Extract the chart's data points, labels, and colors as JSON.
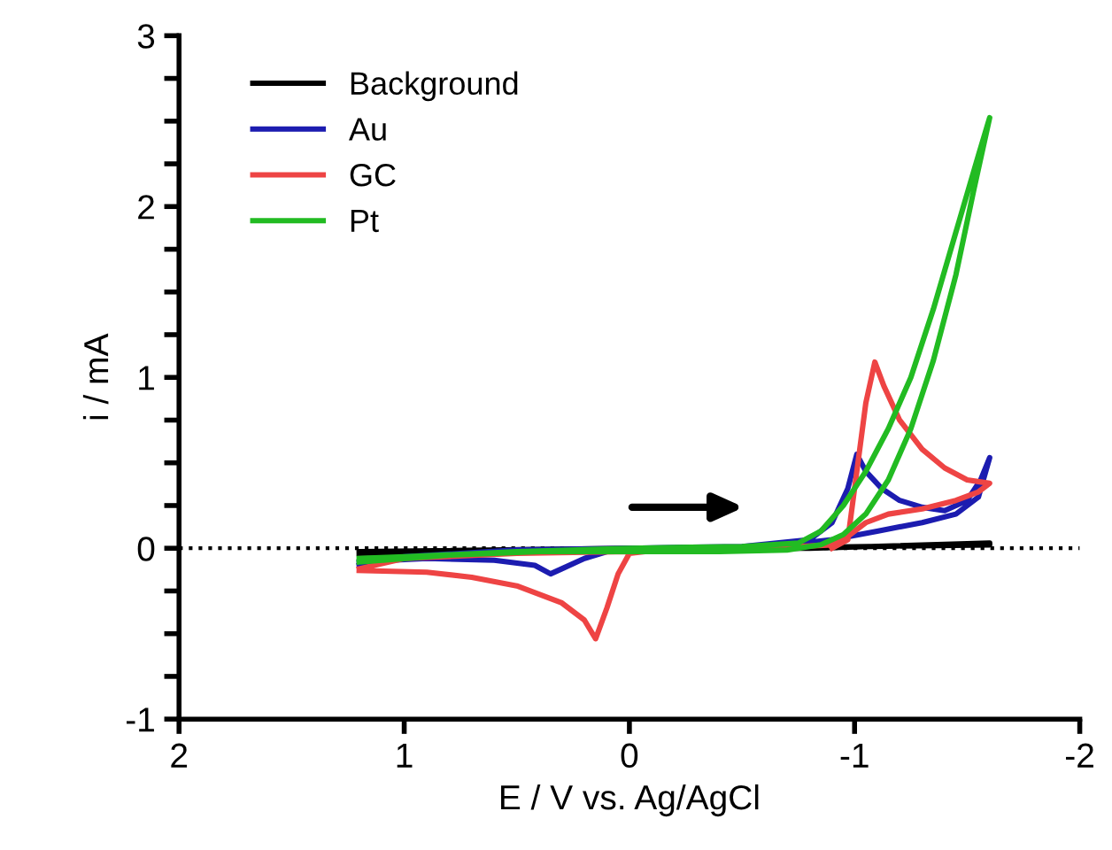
{
  "chart_data": {
    "type": "line",
    "xlabel": "E / V vs. Ag/AgCl",
    "ylabel": "i / mA",
    "xlim": [
      2,
      -2
    ],
    "xticks": [
      2,
      1,
      0,
      -1,
      -2
    ],
    "ylim": [
      -1,
      3
    ],
    "yticks": [
      -1,
      {
        "value": -0.75,
        "label": null
      },
      {
        "value": -0.5,
        "label": null
      },
      {
        "value": -0.25,
        "label": null
      },
      0,
      {
        "value": 0.25,
        "label": null
      },
      {
        "value": 0.5,
        "label": null
      },
      {
        "value": 0.75,
        "label": null
      },
      1,
      {
        "value": 1.25,
        "label": null
      },
      {
        "value": 1.5,
        "label": null
      },
      {
        "value": 1.75,
        "label": null
      },
      2,
      {
        "value": 2.25,
        "label": null
      },
      {
        "value": 2.5,
        "label": null
      },
      {
        "value": 2.75,
        "label": null
      },
      3
    ],
    "grid": false,
    "legend": "top left",
    "marker": "none",
    "line_style": "solid",
    "ref_lines": [
      {
        "axis": "y",
        "value": 0,
        "color": "#000000",
        "line_style": "dotted"
      }
    ],
    "series": [
      {
        "name": "Background",
        "color": "#000000",
        "x": [
          1.2,
          0,
          -0.8,
          -1.6,
          -1.6,
          0,
          1.2
        ],
        "values": [
          -0.02,
          0.0,
          0.0,
          0.03,
          0.02,
          -0.01,
          -0.03
        ]
      },
      {
        "name": "Au",
        "color": "#1c1cb0",
        "x": [
          1.2,
          1.0,
          0.5,
          0,
          -0.5,
          -0.8,
          -0.9,
          -0.97,
          -1.01,
          -1.05,
          -1.12,
          -1.2,
          -1.3,
          -1.4,
          -1.5,
          -1.56,
          -1.6,
          -1.55,
          -1.45,
          -1.3,
          -1.1,
          -0.9,
          -0.7,
          -0.3,
          0.1,
          0.2,
          0.3,
          0.35,
          0.42,
          0.6,
          0.9,
          1.2
        ],
        "values": [
          -0.1,
          -0.05,
          -0.01,
          0.0,
          0.01,
          0.05,
          0.15,
          0.35,
          0.55,
          0.45,
          0.35,
          0.28,
          0.24,
          0.22,
          0.28,
          0.4,
          0.53,
          0.3,
          0.2,
          0.15,
          0.1,
          0.05,
          0.02,
          0.0,
          -0.02,
          -0.06,
          -0.12,
          -0.15,
          -0.1,
          -0.07,
          -0.06,
          -0.08
        ]
      },
      {
        "name": "GC",
        "color": "#ee4444",
        "x": [
          1.2,
          1.0,
          0.5,
          0,
          -0.5,
          -0.9,
          -0.97,
          -1.01,
          -1.05,
          -1.09,
          -1.13,
          -1.2,
          -1.3,
          -1.4,
          -1.5,
          -1.6,
          -1.55,
          -1.45,
          -1.3,
          -1.15,
          -1.05,
          -0.97,
          -0.9,
          -0.6,
          -0.2,
          0.0,
          0.05,
          0.1,
          0.15,
          0.2,
          0.3,
          0.5,
          0.7,
          0.9,
          1.2
        ],
        "values": [
          -0.12,
          -0.06,
          -0.03,
          -0.02,
          null,
          0.0,
          0.05,
          0.45,
          0.85,
          1.09,
          0.95,
          0.75,
          0.58,
          0.47,
          0.4,
          0.38,
          0.33,
          0.28,
          0.23,
          0.2,
          0.15,
          0.07,
          0.02,
          0.0,
          0.0,
          -0.03,
          -0.15,
          -0.35,
          -0.53,
          -0.42,
          -0.32,
          -0.22,
          -0.17,
          -0.14,
          -0.13
        ]
      },
      {
        "name": "Pt",
        "color": "#22bb22",
        "x": [
          1.2,
          0.8,
          0.4,
          0,
          -0.4,
          -0.7,
          -0.85,
          -0.95,
          -1.05,
          -1.15,
          -1.25,
          -1.35,
          -1.45,
          -1.53,
          -1.6,
          -1.55,
          -1.45,
          -1.35,
          -1.25,
          -1.15,
          -1.05,
          -0.95,
          -0.85,
          -0.75,
          -0.5,
          0,
          0.5,
          1.0,
          1.2
        ],
        "values": [
          -0.08,
          -0.04,
          -0.02,
          -0.02,
          -0.02,
          -0.01,
          0.02,
          0.08,
          0.2,
          0.4,
          0.7,
          1.1,
          1.6,
          2.1,
          2.52,
          2.3,
          1.85,
          1.4,
          1.0,
          0.7,
          0.45,
          0.25,
          0.1,
          0.03,
          0.01,
          0.0,
          -0.02,
          -0.05,
          -0.06
        ]
      }
    ]
  }
}
